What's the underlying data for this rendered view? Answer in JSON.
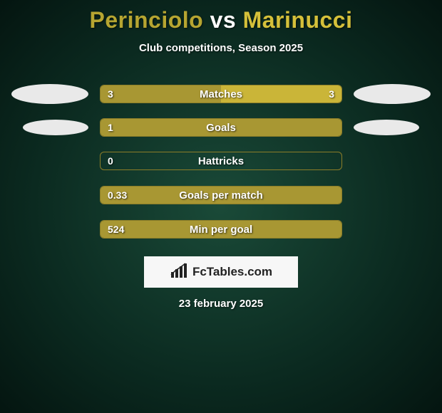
{
  "title": {
    "player1": "Perinciolo",
    "vs": "vs",
    "player2": "Marinucci",
    "player1_color": "#b6a531",
    "player2_color": "#d5c03a"
  },
  "subtitle": "Club competitions, Season 2025",
  "colors": {
    "left_bar": "#a89733",
    "right_bar": "#cab538",
    "ellipse_left": "#e9e9e9",
    "ellipse_right": "#e9e9e9",
    "logo_bg": "#f7f7f7",
    "logo_text": "#222222",
    "background": "#0b2a20"
  },
  "rows": [
    {
      "label": "Matches",
      "left_value": "3",
      "right_value": "3",
      "left_pct": 50,
      "right_pct": 50,
      "show_left_ellipse": true,
      "show_right_ellipse": true,
      "ellipse_size": "lg"
    },
    {
      "label": "Goals",
      "left_value": "1",
      "right_value": "",
      "left_pct": 100,
      "right_pct": 0,
      "show_left_ellipse": true,
      "show_right_ellipse": true,
      "ellipse_size": "sm"
    },
    {
      "label": "Hattricks",
      "left_value": "0",
      "right_value": "",
      "left_pct": 0,
      "right_pct": 0,
      "show_left_ellipse": false,
      "show_right_ellipse": false
    },
    {
      "label": "Goals per match",
      "left_value": "0.33",
      "right_value": "",
      "left_pct": 100,
      "right_pct": 0,
      "show_left_ellipse": false,
      "show_right_ellipse": false
    },
    {
      "label": "Min per goal",
      "left_value": "524",
      "right_value": "",
      "left_pct": 100,
      "right_pct": 0,
      "show_left_ellipse": false,
      "show_right_ellipse": false
    }
  ],
  "logo": {
    "icon_name": "chart-icon",
    "text": "FcTables.com"
  },
  "date": "23 february 2025",
  "bar_border_color": "#8c7d28"
}
